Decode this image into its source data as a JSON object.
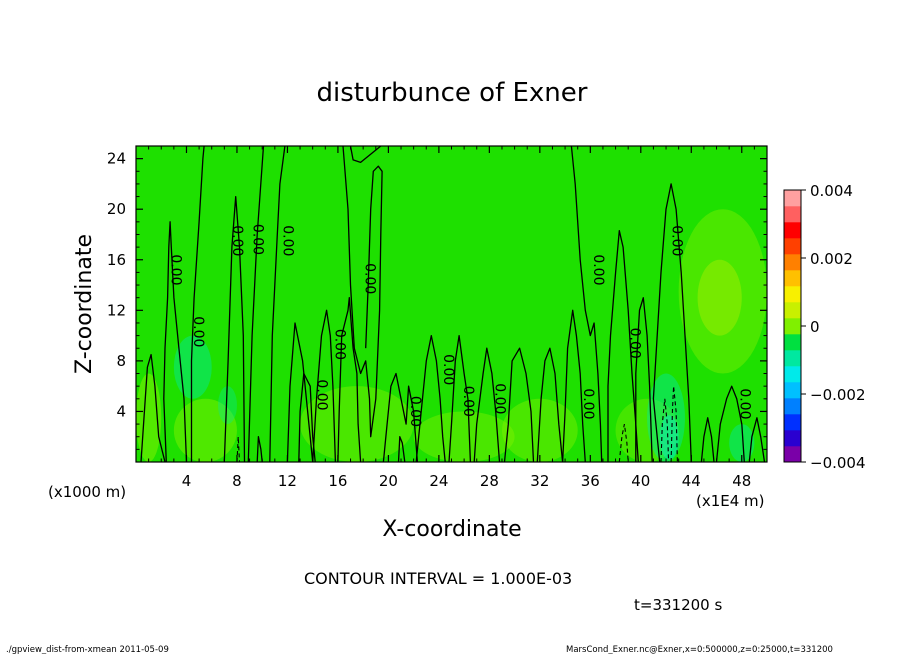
{
  "chart_data": {
    "type": "heatmap",
    "title": "disturbunce of Exner",
    "xlabel": "X-coordinate",
    "ylabel": "Z-coordinate",
    "x_unit_label": "(x1E4 m)",
    "y_unit_label": "(x1000 m)",
    "xlim": [
      0,
      50
    ],
    "ylim": [
      0,
      25
    ],
    "x_ticks": [
      4,
      8,
      12,
      16,
      20,
      24,
      28,
      32,
      36,
      40,
      44,
      48
    ],
    "y_ticks": [
      4,
      8,
      12,
      16,
      20,
      24
    ],
    "colorbar": {
      "ticks": [
        "0.004",
        "0.002",
        "0",
        "−0.002",
        "−0.004"
      ],
      "range": [
        -0.004,
        0.004
      ],
      "colors": [
        "#7a00a8",
        "#2a00d0",
        "#0030ff",
        "#0080ff",
        "#00c0ff",
        "#00eaea",
        "#00e8a0",
        "#00e040",
        "#80f000",
        "#c8f000",
        "#f8f000",
        "#ffc000",
        "#ff8000",
        "#ff4000",
        "#ff0000",
        "#ff6060",
        "#ffa0a0"
      ]
    },
    "contour_interval": "CONTOUR INTERVAL = 1.000E-03",
    "contour_labels": [
      {
        "x": 2.4,
        "y": 15.2,
        "text": "0.00"
      },
      {
        "x": 4.2,
        "y": 10.3,
        "text": "0.00"
      },
      {
        "x": 7.3,
        "y": 17.5,
        "text": "0.00"
      },
      {
        "x": 8.9,
        "y": 17.6,
        "text": "0.00"
      },
      {
        "x": 11.3,
        "y": 17.5,
        "text": "0.00"
      },
      {
        "x": 14.0,
        "y": 5.3,
        "text": "0.00"
      },
      {
        "x": 15.4,
        "y": 9.3,
        "text": "0.00"
      },
      {
        "x": 17.8,
        "y": 14.5,
        "text": "0.00"
      },
      {
        "x": 21.4,
        "y": 4.0,
        "text": "0.00"
      },
      {
        "x": 24.0,
        "y": 7.3,
        "text": "0.00"
      },
      {
        "x": 25.6,
        "y": 4.8,
        "text": "0.00"
      },
      {
        "x": 28.1,
        "y": 5.0,
        "text": "0.00"
      },
      {
        "x": 35.1,
        "y": 4.6,
        "text": "0.00"
      },
      {
        "x": 35.9,
        "y": 15.2,
        "text": "0.00"
      },
      {
        "x": 38.8,
        "y": 9.4,
        "text": "0.00"
      },
      {
        "x": 42.1,
        "y": 17.5,
        "text": "0.00"
      },
      {
        "x": 47.5,
        "y": 4.6,
        "text": "0.00"
      }
    ],
    "time_label": "t=331200 s",
    "footer_left": "./gpview_dist-from-xmean  2011-05-09",
    "footer_right": "MarsCond_Exner.nc@Exner,x=0:500000,z=0:25000,t=331200"
  }
}
